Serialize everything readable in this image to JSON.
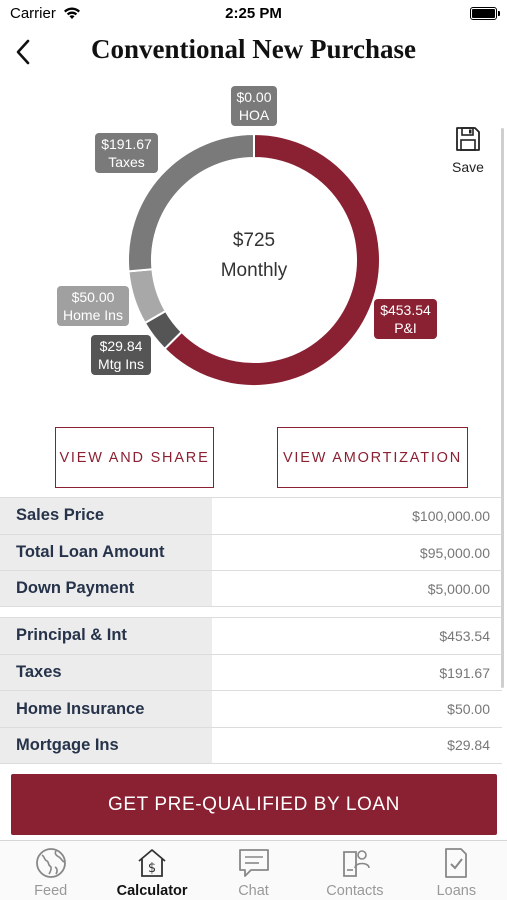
{
  "status": {
    "carrier": "Carrier",
    "time": "2:25 PM"
  },
  "header": {
    "title": "Conventional New Purchase"
  },
  "chart": {
    "center_amount": "$725",
    "center_label": "Monthly",
    "save_label": "Save",
    "labels": {
      "hoa": {
        "amount": "$0.00",
        "name": "HOA"
      },
      "taxes": {
        "amount": "$191.67",
        "name": "Taxes"
      },
      "home_ins": {
        "amount": "$50.00",
        "name": "Home Ins"
      },
      "mtg_ins": {
        "amount": "$29.84",
        "name": "Mtg Ins"
      },
      "pi": {
        "amount": "$453.54",
        "name": "P&I"
      }
    }
  },
  "chart_data": {
    "type": "pie",
    "categories": [
      "P&I",
      "Mtg Ins",
      "Home Ins",
      "Taxes",
      "HOA"
    ],
    "values": [
      453.54,
      29.84,
      50.0,
      191.67,
      0.0
    ],
    "colors": [
      "#8a2133",
      "#555555",
      "#a8a8a8",
      "#7a7a7a",
      "#7a7a7a"
    ],
    "title": "$725 Monthly"
  },
  "actions": {
    "share": "VIEW AND SHARE",
    "amortization": "VIEW AMORTIZATION"
  },
  "loan_table": [
    {
      "label": "Sales Price",
      "value": "$100,000.00"
    },
    {
      "label": "Total Loan Amount",
      "value": "$95,000.00"
    },
    {
      "label": "Down Payment",
      "value": "$5,000.00"
    }
  ],
  "payment_table": [
    {
      "label": "Principal & Int",
      "value": "$453.54"
    },
    {
      "label": "Taxes",
      "value": "$191.67"
    },
    {
      "label": "Home Insurance",
      "value": "$50.00"
    },
    {
      "label": "Mortgage Ins",
      "value": "$29.84"
    }
  ],
  "cta": {
    "label": "GET PRE-QUALIFIED BY LOAN"
  },
  "tabs": [
    {
      "label": "Feed",
      "icon": "globe-icon"
    },
    {
      "label": "Calculator",
      "icon": "calculator-icon"
    },
    {
      "label": "Chat",
      "icon": "chat-icon"
    },
    {
      "label": "Contacts",
      "icon": "contacts-icon"
    },
    {
      "label": "Loans",
      "icon": "loans-icon"
    }
  ]
}
